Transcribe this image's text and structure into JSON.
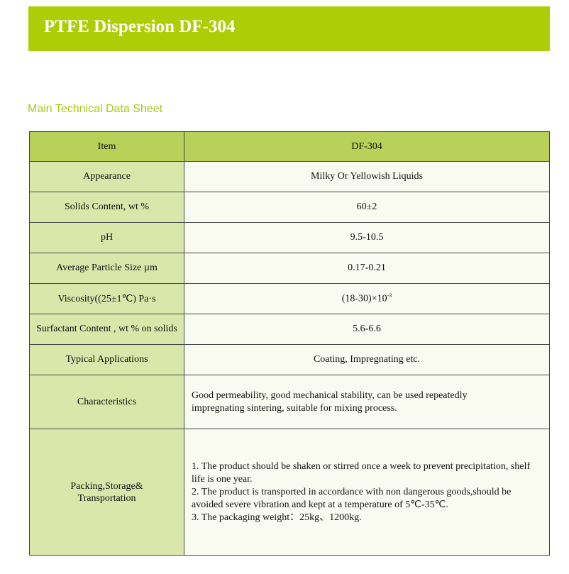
{
  "title": "PTFE Dispersion DF-304",
  "subtitle": "Main Technical Data Sheet",
  "table": {
    "header": {
      "item": "Item",
      "value": "DF-304"
    },
    "rows": [
      {
        "item": "Appearance",
        "value": "Milky Or Yellowish Liquids"
      },
      {
        "item": "Solids Content, wt %",
        "value": "60±2"
      },
      {
        "item": "pH",
        "value": "9.5-10.5"
      },
      {
        "item": "Average Particle Size µm",
        "value": "0.17-0.21"
      },
      {
        "item": "Viscosity((25±1℃) Pa·s",
        "value": "(18-30)×10",
        "sup": "-3"
      },
      {
        "item": "Surfactant Content , wt % on solids",
        "value": "5.6-6.6"
      },
      {
        "item": "Typical Applications",
        "value": "Coating, Impregnating etc."
      },
      {
        "item": "Characteristics",
        "value": "Good permeability, good mechanical stability, can be used repeatedly impregnating sintering, suitable for mixing process."
      },
      {
        "item": "Packing,Storage& Transportation",
        "lines": [
          "1. The product should be shaken or stirred once a week to prevent precipitation, shelf life is one year.",
          "2. The product is transported in accordance with non dangerous goods,should be avoided severe vibration and kept at a temperature of 5℃-35℃.",
          "3. The packaging weight：25kg、1200kg."
        ]
      }
    ]
  }
}
